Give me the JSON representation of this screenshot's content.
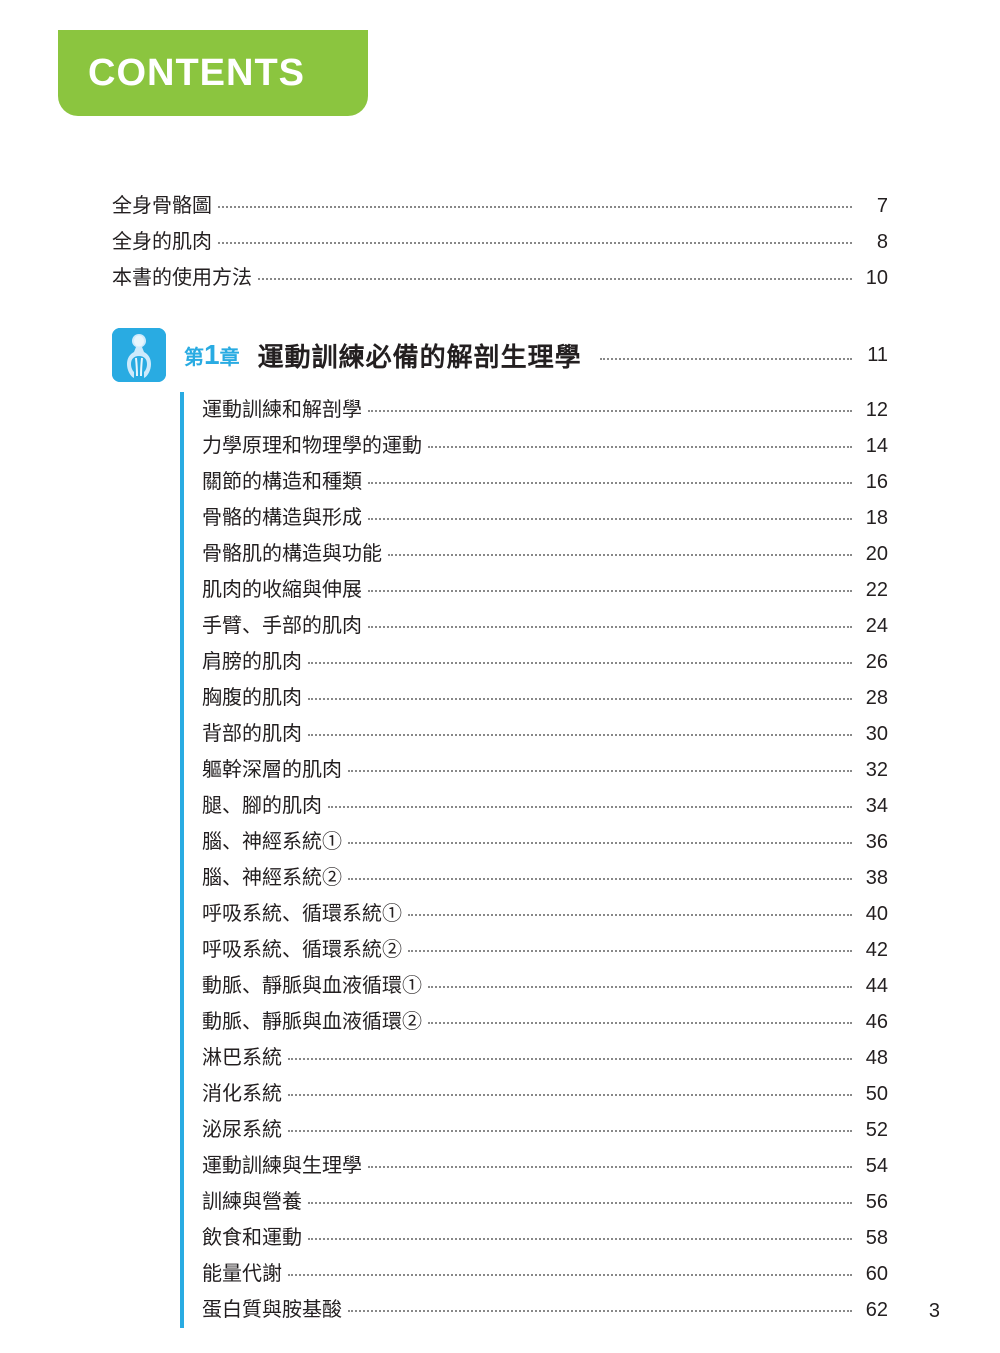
{
  "header": {
    "title": "CONTENTS"
  },
  "colors": {
    "tab_bg": "#8bc53f",
    "tab_text": "#ffffff",
    "accent": "#29abe2",
    "text": "#231f20",
    "dots": "#888888"
  },
  "front_matter": [
    {
      "label": "全身骨骼圖",
      "page": "7"
    },
    {
      "label": "全身的肌肉",
      "page": "8"
    },
    {
      "label": "本書的使用方法",
      "page": "10"
    }
  ],
  "chapter": {
    "prefix": "第",
    "number": "1",
    "suffix": "章",
    "title": "運動訓練必備的解剖生理學",
    "page": "11",
    "items": [
      {
        "label": "運動訓練和解剖學",
        "page": "12"
      },
      {
        "label": "力學原理和物理學的運動",
        "page": "14"
      },
      {
        "label": "關節的構造和種類",
        "page": "16"
      },
      {
        "label": "骨骼的構造與形成",
        "page": "18"
      },
      {
        "label": "骨骼肌的構造與功能",
        "page": "20"
      },
      {
        "label": "肌肉的收縮與伸展",
        "page": "22"
      },
      {
        "label": "手臂、手部的肌肉",
        "page": "24"
      },
      {
        "label": "肩膀的肌肉",
        "page": "26"
      },
      {
        "label": "胸腹的肌肉",
        "page": "28"
      },
      {
        "label": "背部的肌肉",
        "page": "30"
      },
      {
        "label": "軀幹深層的肌肉",
        "page": "32"
      },
      {
        "label": "腿、腳的肌肉",
        "page": "34"
      },
      {
        "label": "腦、神經系統①",
        "page": "36"
      },
      {
        "label": "腦、神經系統②",
        "page": "38"
      },
      {
        "label": "呼吸系統、循環系統①",
        "page": "40"
      },
      {
        "label": "呼吸系統、循環系統②",
        "page": "42"
      },
      {
        "label": "動脈、靜脈與血液循環①",
        "page": "44"
      },
      {
        "label": "動脈、靜脈與血液循環②",
        "page": "46"
      },
      {
        "label": "淋巴系統",
        "page": "48"
      },
      {
        "label": "消化系統",
        "page": "50"
      },
      {
        "label": "泌尿系統",
        "page": "52"
      },
      {
        "label": "運動訓練與生理學",
        "page": "54"
      },
      {
        "label": "訓練與營養",
        "page": "56"
      },
      {
        "label": "飲食和運動",
        "page": "58"
      },
      {
        "label": "能量代謝",
        "page": "60"
      },
      {
        "label": "蛋白質與胺基酸",
        "page": "62"
      }
    ]
  },
  "page_number": "3"
}
